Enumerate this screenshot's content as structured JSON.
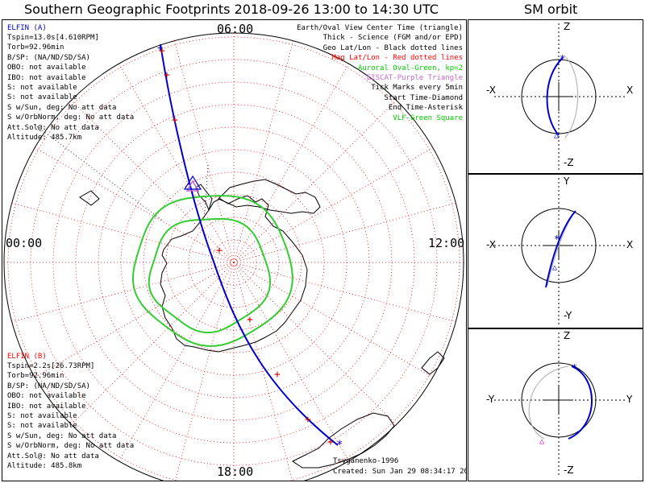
{
  "header": {
    "title": "Southern Geographic Footprints 2018-09-26 13:00 to 14:30 UTC",
    "orbit_title": "SM orbit"
  },
  "map": {
    "hour_labels": {
      "top": "06:00",
      "left": "00:00",
      "right": "12:00",
      "bottom": "18:00"
    },
    "elfin_a": {
      "heading": "ELFIN (A)",
      "heading_color": "#0000cc",
      "lines": [
        "Tspin=13.0s[4.610RPM]",
        "Torb=92.96min",
        "B/SP: (NA/ND/SD/SA)",
        "OBO: not available",
        "IBO: not available",
        "S: not available",
        "S: not available",
        "S w/Sun, deg: No att data",
        "S w/OrbNorm, deg: No att data",
        "Att.Sol@: No att data",
        "Altitude: 485.7km"
      ]
    },
    "elfin_b": {
      "heading": "ELFIN (B)",
      "heading_color": "#ff0000",
      "lines": [
        "Tspin=2.2s[26.73RPM]",
        "Torb=92.96min",
        "B/SP: (NA/ND/SD/SA)",
        "OBO: not available",
        "IBO: not available",
        "S: not available",
        "S: not available",
        "S w/Sun, deg: No att data",
        "S w/OrbNorm, deg: No att data",
        "Att.Sol@: No att data",
        "Altitude: 485.8km"
      ]
    },
    "legend": [
      {
        "text": "Earth/Oval View Center Time (triangle)",
        "color": "#000000"
      },
      {
        "text": "Thick - Science (FGM and/or EPD)",
        "color": "#000000"
      },
      {
        "text": "Geo Lat/Lon - Black dotted lines",
        "color": "#000000"
      },
      {
        "text": "Mag Lat/Lon - Red dotted lines",
        "color": "#ff0000"
      },
      {
        "text": "Auroral Oval-Green, kp=2",
        "color": "#00cc00"
      },
      {
        "text": "EISCAT-Purple Triangle",
        "color": "#cc66cc"
      },
      {
        "text": "Tick Marks every 5min",
        "color": "#000000"
      },
      {
        "text": "Start Time-Diamond",
        "color": "#000000"
      },
      {
        "text": "End Time-Asterisk",
        "color": "#000000"
      },
      {
        "text": "VLF-Green Square",
        "color": "#00cc00"
      }
    ],
    "credit": "Tsyganenko-1996",
    "created": "Created: Sun Jan 29 08:34:17 2023",
    "colors": {
      "orbit": "#0000cc",
      "ticks": "#cc0000",
      "mag_grid": "#ff0000",
      "oval": "#33cc33",
      "eiscat": "#cc66cc"
    }
  },
  "orbits": [
    {
      "top": "Z",
      "bottom": "-Z",
      "left": "-X",
      "right": "X"
    },
    {
      "top": "Y",
      "bottom": "-Y",
      "left": "-X",
      "right": "X"
    },
    {
      "top": "Z",
      "bottom": "-Z",
      "left": "-Y",
      "right": "Y"
    }
  ]
}
